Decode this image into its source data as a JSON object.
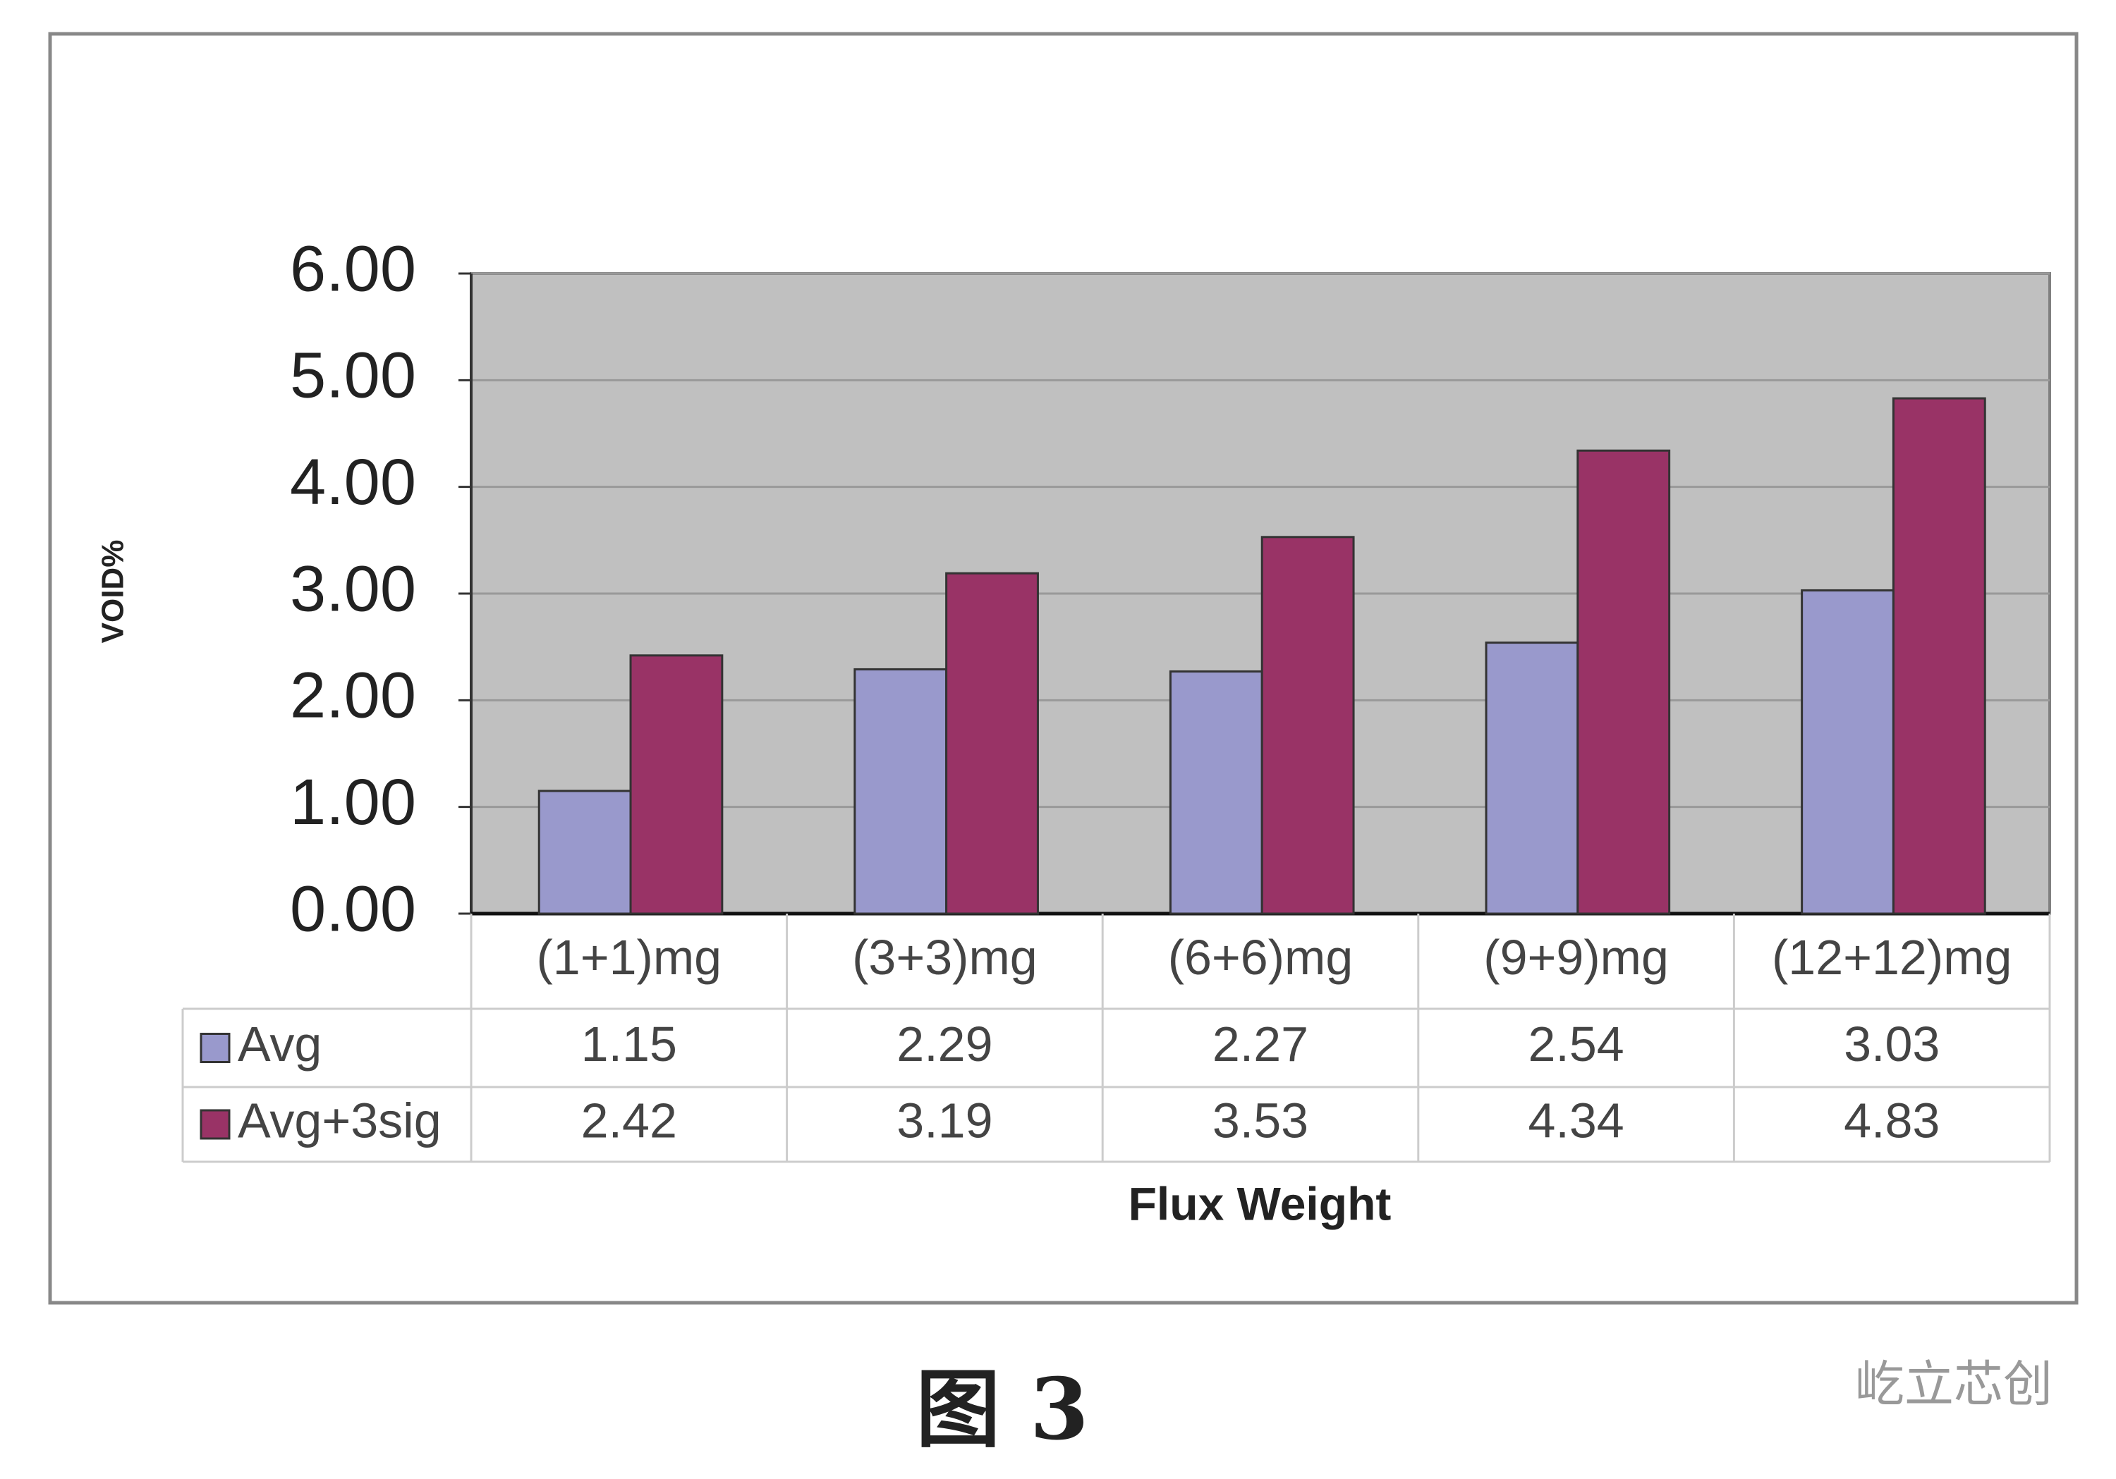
{
  "chart_data": {
    "type": "bar",
    "y_label": "VOID%",
    "x_label": "Flux Weight",
    "categories": [
      "(1+1)mg",
      "(3+3)mg",
      "(6+6)mg",
      "(9+9)mg",
      "(12+12)mg"
    ],
    "series": [
      {
        "name": "Avg",
        "color": "#9999cc",
        "values": [
          1.15,
          2.29,
          2.27,
          2.54,
          3.03
        ]
      },
      {
        "name": "Avg+3sig",
        "color": "#993366",
        "values": [
          2.42,
          3.19,
          3.53,
          4.34,
          4.83
        ]
      }
    ],
    "ylim": [
      0,
      6
    ],
    "yticks": [
      {
        "value": 0,
        "label": "0.00"
      },
      {
        "value": 1,
        "label": "1.00"
      },
      {
        "value": 2,
        "label": "2.00"
      },
      {
        "value": 3,
        "label": "3.00"
      },
      {
        "value": 4,
        "label": "4.00"
      },
      {
        "value": 5,
        "label": "5.00"
      },
      {
        "value": 6,
        "label": "6.00"
      }
    ],
    "grid": true
  },
  "caption": "图 3",
  "watermark": "屹立芯创"
}
